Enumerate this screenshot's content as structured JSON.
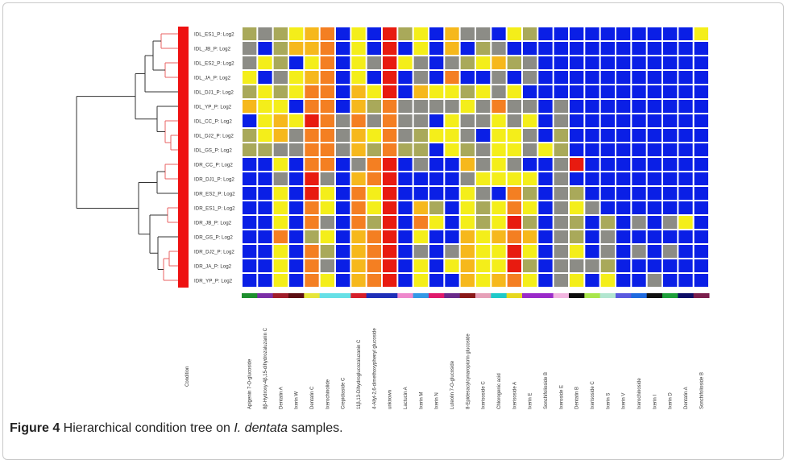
{
  "figure": {
    "caption_label": "Figure 4",
    "caption_text": " Hierarchical condition tree on ",
    "caption_species": "I. dentata",
    "caption_end": " samples."
  },
  "colors": {
    "blue": "#0a1fe6",
    "gray": "#8c8c86",
    "olive": "#a9a95a",
    "khaki": "#c8c85a",
    "yellow": "#f4ee1a",
    "gold": "#f6b81c",
    "orange": "#f47f22",
    "red": "#e81b10",
    "condition_bar": "#ee1111",
    "tree_line": "#333333",
    "tree_leaf_line": "#e86060"
  },
  "chart_data": {
    "type": "heatmap",
    "title": "",
    "condition_axis_label": "Condition",
    "rows": [
      "IDL_ES1_P: Log2",
      "IDL_JB_P: Log2",
      "IDL_ES2_P: Log2",
      "IDL_JA_P: Log2",
      "IDL_DJ1_P: Log2",
      "IDL_YP_P: Log2",
      "IDL_CC_P: Log2",
      "IDL_DJ2_P: Log2",
      "IDL_GS_P: Log2",
      "IDR_CC_P: Log2",
      "IDR_DJ1_P: Log2",
      "IDR_ES2_P: Log2",
      "IDR_ES1_P: Log2",
      "IDR_JB_P: Log2",
      "IDR_GS_P: Log2",
      "IDR_DJ2_P: Log2",
      "IDR_JA_P: Log2",
      "IDR_YP_P: Log2"
    ],
    "columns": [
      "Apigenin 7-O-glucoside",
      "8β-Hydroxy-4β,15-dihydrozaluzanin C",
      "Dentatin A",
      "Ixerin W",
      "Dentatin C",
      "Ixerochinolide",
      "Crepidiaside C",
      "11β,13-Dihydroglucozaluzanin C",
      "4-Allyl-2,6-dimethoxyphenyl glucoside",
      "unknown",
      "Lactucin A",
      "Ixerin M",
      "Ixerin N",
      "Luteolin 7-O-glucoside",
      "8-Epidesacylcynaropicrin glucoside",
      "Ixerisoside C",
      "Chlorogenic acid",
      "Ixerisoside A",
      "Ixerin E",
      "Sonchifolioside B",
      "Ixeroside E",
      "Dentatin B",
      "Ixerisoside C",
      "Ixerin S",
      "Ixerin V",
      "Ixerochinoside",
      "Ixerin I",
      "Ixerin D",
      "Dentatin A",
      "Sonchifolioside B"
    ],
    "column_group_colors": [
      "#1e8f2e",
      "#7b2ea6",
      "#a01d2a",
      "#5c0e12",
      "#e6e63a",
      "#66e0e6",
      "#66e0e6",
      "#d61f2a",
      "#1f2fb8",
      "#1f2fb8",
      "#ee88cc",
      "#3399e6",
      "#e0196b",
      "#6a2a8a",
      "#8a1818",
      "#e6a0b8",
      "#1fc9c9",
      "#e6d81f",
      "#9a2ac9",
      "#9a2ac9",
      "#f2b5e0",
      "#0d0d0d",
      "#a8e64c",
      "#b2e6d0",
      "#5a5adf",
      "#1f6adf",
      "#111111",
      "#1e9f3a",
      "#0d0d66",
      "#7b1f4c"
    ],
    "value_scale": [
      "blue",
      "gray",
      "olive",
      "khaki",
      "yellow",
      "gold",
      "orange",
      "red"
    ],
    "value_range": [
      0,
      7
    ],
    "matrix": [
      [
        2,
        1,
        2,
        4,
        5,
        6,
        0,
        4,
        0,
        7,
        2,
        4,
        0,
        5,
        1,
        1,
        0,
        4,
        2,
        0,
        0,
        0,
        0,
        0,
        0,
        0,
        0,
        0,
        0,
        4
      ],
      [
        1,
        0,
        2,
        5,
        5,
        6,
        0,
        4,
        0,
        7,
        0,
        4,
        0,
        5,
        0,
        2,
        1,
        0,
        0,
        0,
        0,
        0,
        0,
        0,
        0,
        0,
        0,
        0,
        0,
        0
      ],
      [
        1,
        4,
        2,
        0,
        4,
        6,
        0,
        4,
        1,
        7,
        4,
        1,
        0,
        1,
        2,
        4,
        5,
        2,
        1,
        0,
        0,
        0,
        0,
        0,
        0,
        0,
        0,
        0,
        0,
        0
      ],
      [
        4,
        0,
        1,
        4,
        5,
        6,
        0,
        4,
        0,
        7,
        0,
        1,
        0,
        6,
        0,
        0,
        1,
        0,
        1,
        0,
        0,
        0,
        0,
        0,
        0,
        0,
        0,
        0,
        0,
        0
      ],
      [
        2,
        4,
        2,
        4,
        6,
        6,
        0,
        5,
        4,
        7,
        0,
        5,
        4,
        4,
        2,
        4,
        1,
        4,
        0,
        0,
        0,
        0,
        0,
        0,
        0,
        0,
        0,
        0,
        0,
        0
      ],
      [
        5,
        4,
        4,
        0,
        6,
        6,
        0,
        5,
        2,
        6,
        1,
        1,
        1,
        1,
        4,
        1,
        6,
        1,
        1,
        0,
        1,
        0,
        0,
        0,
        0,
        0,
        0,
        0,
        0,
        0
      ],
      [
        0,
        4,
        5,
        4,
        7,
        6,
        1,
        6,
        1,
        6,
        1,
        1,
        0,
        4,
        1,
        1,
        4,
        1,
        4,
        0,
        1,
        0,
        0,
        0,
        0,
        0,
        0,
        0,
        0,
        0
      ],
      [
        2,
        4,
        5,
        1,
        6,
        6,
        1,
        5,
        4,
        6,
        1,
        2,
        4,
        4,
        1,
        0,
        4,
        4,
        1,
        0,
        2,
        0,
        0,
        0,
        0,
        0,
        0,
        0,
        0,
        0
      ],
      [
        2,
        2,
        1,
        1,
        6,
        6,
        1,
        5,
        2,
        6,
        2,
        2,
        0,
        4,
        2,
        1,
        4,
        4,
        1,
        4,
        2,
        0,
        0,
        0,
        0,
        0,
        0,
        0,
        0,
        0
      ],
      [
        0,
        0,
        4,
        0,
        6,
        6,
        0,
        1,
        6,
        7,
        0,
        1,
        0,
        0,
        5,
        1,
        4,
        1,
        0,
        0,
        1,
        7,
        0,
        0,
        0,
        0,
        0,
        0,
        0,
        0
      ],
      [
        0,
        0,
        1,
        0,
        7,
        1,
        0,
        5,
        6,
        7,
        0,
        0,
        0,
        0,
        1,
        4,
        4,
        4,
        4,
        0,
        1,
        0,
        0,
        0,
        0,
        0,
        0,
        0,
        0,
        0
      ],
      [
        0,
        0,
        4,
        0,
        7,
        4,
        0,
        6,
        4,
        7,
        0,
        0,
        0,
        0,
        4,
        1,
        0,
        6,
        2,
        0,
        1,
        2,
        0,
        0,
        0,
        0,
        0,
        0,
        0,
        0
      ],
      [
        0,
        0,
        4,
        0,
        6,
        4,
        0,
        6,
        4,
        7,
        0,
        5,
        2,
        0,
        4,
        2,
        4,
        6,
        4,
        0,
        1,
        4,
        1,
        0,
        0,
        0,
        0,
        0,
        0,
        0
      ],
      [
        0,
        0,
        4,
        0,
        6,
        1,
        0,
        6,
        2,
        7,
        0,
        6,
        4,
        0,
        4,
        2,
        4,
        7,
        2,
        0,
        1,
        2,
        0,
        2,
        0,
        1,
        0,
        1,
        4,
        0
      ],
      [
        0,
        0,
        6,
        0,
        2,
        4,
        0,
        5,
        6,
        7,
        0,
        4,
        0,
        0,
        5,
        4,
        5,
        6,
        5,
        0,
        1,
        2,
        0,
        1,
        0,
        0,
        0,
        0,
        0,
        0
      ],
      [
        0,
        0,
        4,
        0,
        6,
        2,
        0,
        5,
        6,
        7,
        0,
        1,
        0,
        1,
        5,
        4,
        4,
        7,
        4,
        0,
        1,
        4,
        0,
        1,
        0,
        1,
        0,
        1,
        0,
        0
      ],
      [
        0,
        0,
        4,
        0,
        6,
        1,
        0,
        5,
        6,
        7,
        0,
        4,
        0,
        4,
        5,
        4,
        4,
        7,
        2,
        0,
        1,
        1,
        1,
        2,
        0,
        0,
        0,
        0,
        0,
        0
      ],
      [
        0,
        0,
        4,
        0,
        6,
        4,
        0,
        5,
        6,
        7,
        0,
        4,
        0,
        0,
        5,
        4,
        5,
        6,
        4,
        0,
        1,
        4,
        0,
        4,
        0,
        0,
        1,
        0,
        0,
        0
      ]
    ]
  }
}
